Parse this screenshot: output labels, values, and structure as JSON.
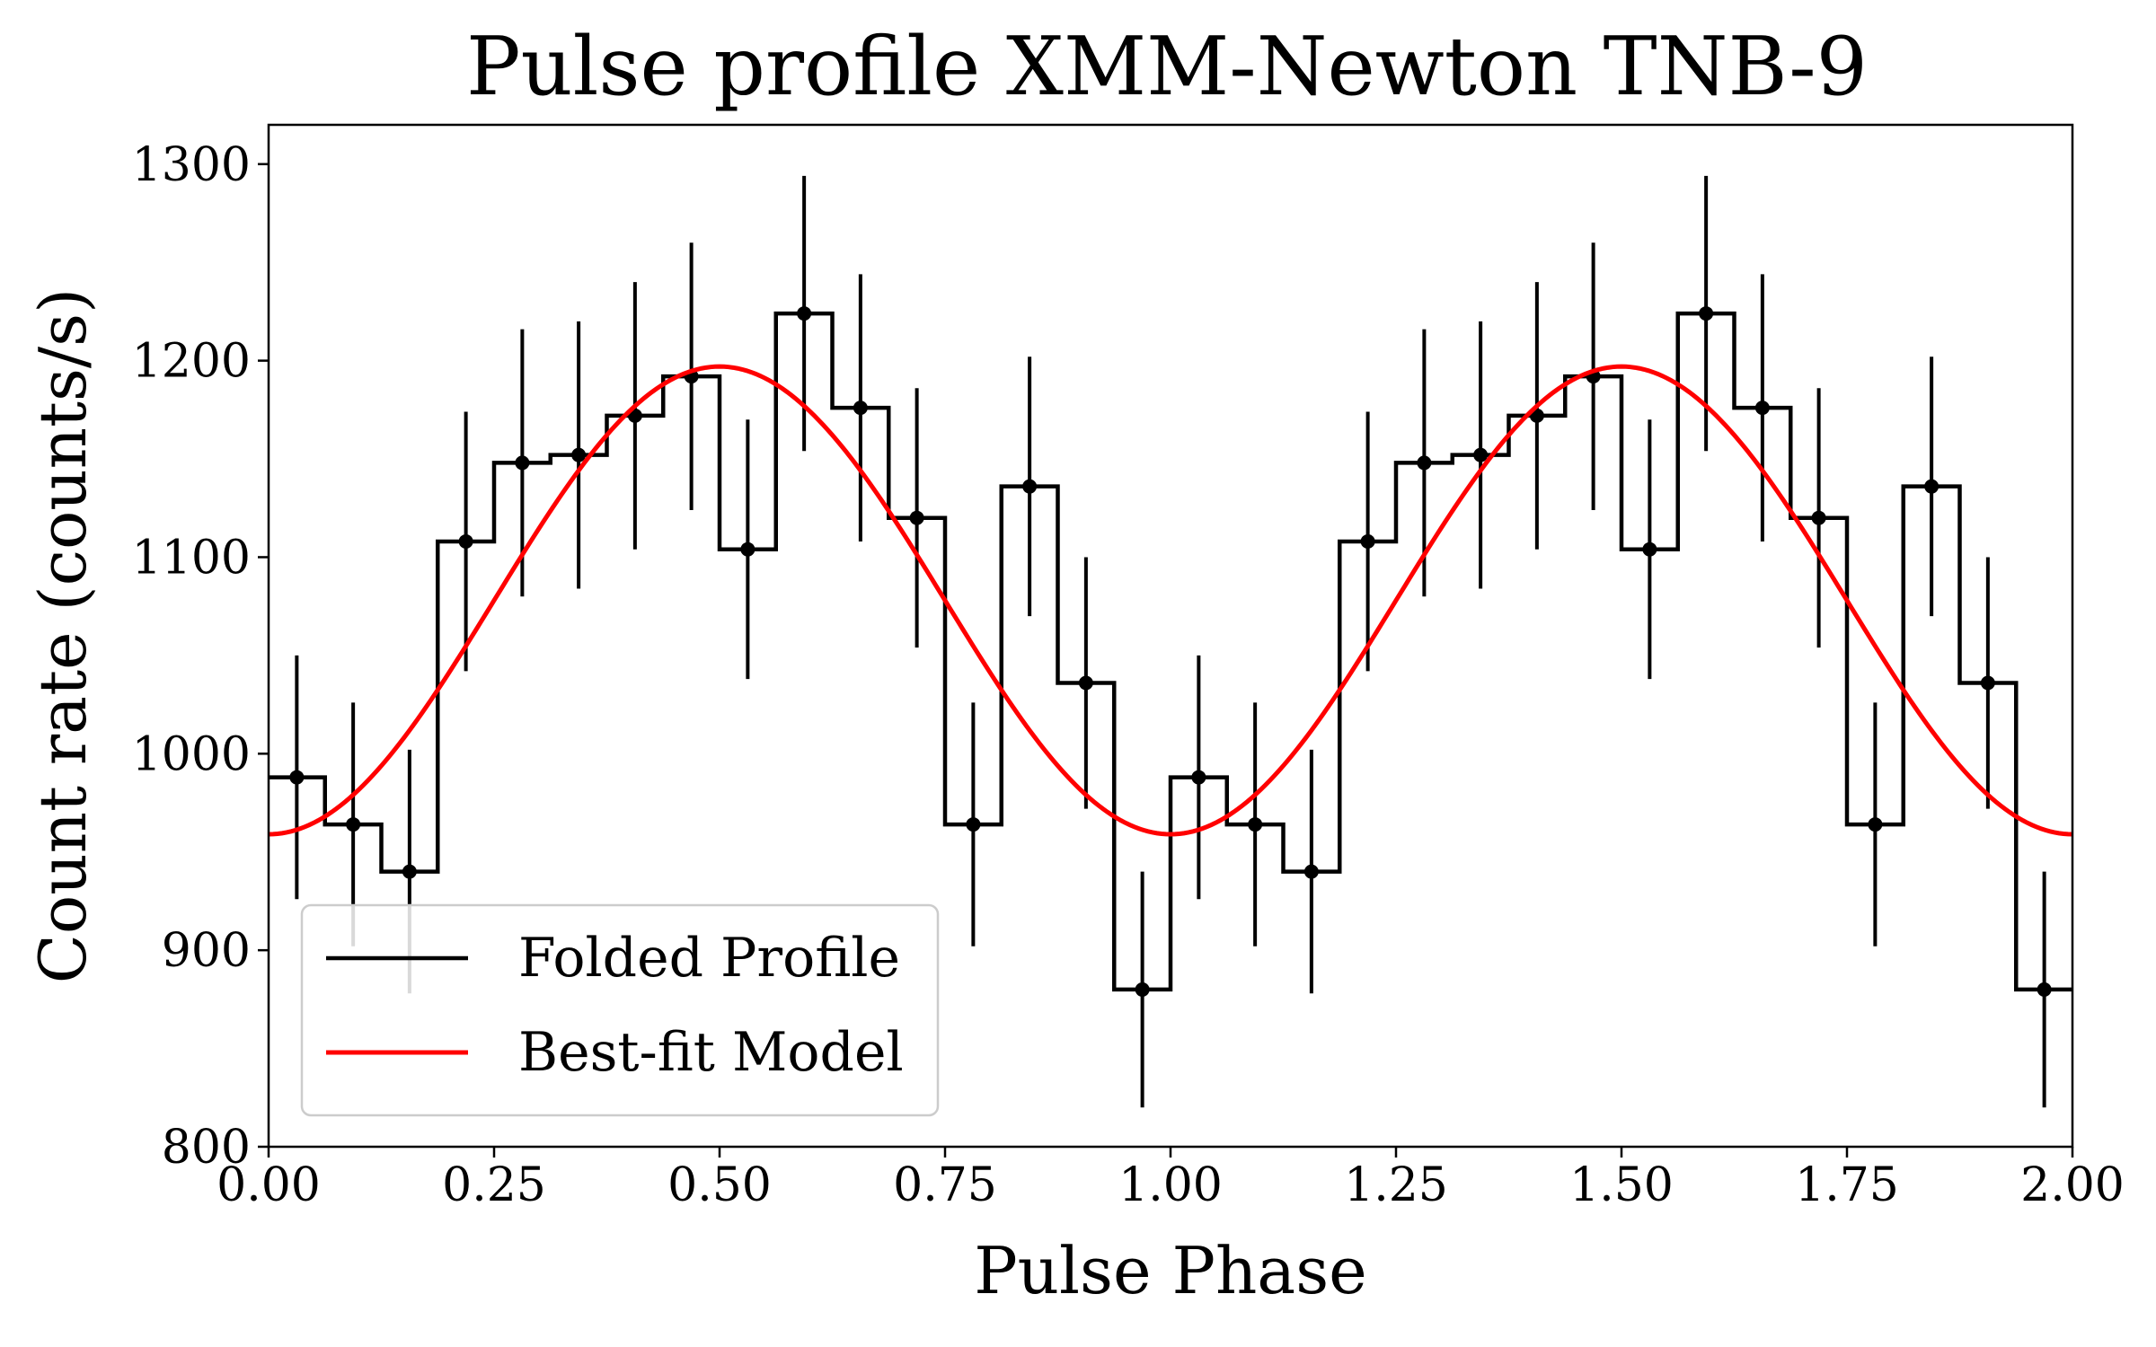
{
  "chart_data": {
    "type": "line",
    "title": "Pulse profile XMM-Newton TNB-9",
    "xlabel": "Pulse Phase",
    "ylabel": "Count rate (counts/s)",
    "xlim": [
      0,
      2
    ],
    "ylim": [
      800,
      1320
    ],
    "xticks": [
      0,
      0.25,
      0.5,
      0.75,
      1.0,
      1.25,
      1.5,
      1.75,
      2.0
    ],
    "xtick_labels": [
      "0.00",
      "0.25",
      "0.50",
      "0.75",
      "1.00",
      "1.25",
      "1.50",
      "1.75",
      "2.00"
    ],
    "yticks": [
      800,
      900,
      1000,
      1100,
      1200,
      1300
    ],
    "ytick_labels": [
      "800",
      "900",
      "1000",
      "1100",
      "1200",
      "1300"
    ],
    "legend": {
      "location": "lower left",
      "entries": [
        {
          "label": "Folded Profile",
          "color": "#000000"
        },
        {
          "label": "Best-fit Model",
          "color": "#ff0000"
        }
      ]
    },
    "folded_profile": {
      "name": "Folded Profile",
      "color": "#000000",
      "bin_width": 0.0625,
      "phase": [
        0.03125,
        0.09375,
        0.15625,
        0.21875,
        0.28125,
        0.34375,
        0.40625,
        0.46875,
        0.53125,
        0.59375,
        0.65625,
        0.71875,
        0.78125,
        0.84375,
        0.90625,
        0.96875,
        1.03125,
        1.09375,
        1.15625,
        1.21875,
        1.28125,
        1.34375,
        1.40625,
        1.46875,
        1.53125,
        1.59375,
        1.65625,
        1.71875,
        1.78125,
        1.84375,
        1.90625,
        1.96875
      ],
      "rate": [
        988,
        964,
        940,
        1108,
        1148,
        1152,
        1172,
        1192,
        1104,
        1224,
        1176,
        1120,
        964,
        1136,
        1036,
        880,
        988,
        964,
        940,
        1108,
        1148,
        1152,
        1172,
        1192,
        1104,
        1224,
        1176,
        1120,
        964,
        1136,
        1036,
        880
      ],
      "error": [
        62,
        62,
        62,
        66,
        68,
        68,
        68,
        68,
        66,
        70,
        68,
        66,
        62,
        66,
        64,
        60,
        62,
        62,
        62,
        66,
        68,
        68,
        68,
        68,
        66,
        70,
        68,
        66,
        62,
        66,
        64,
        60
      ]
    },
    "best_fit_model": {
      "name": "Best-fit Model",
      "color": "#ff0000",
      "form": "sinusoid",
      "mean": 1078,
      "amplitude": 119,
      "peak_phase": 0.5,
      "period": 1.0
    }
  }
}
